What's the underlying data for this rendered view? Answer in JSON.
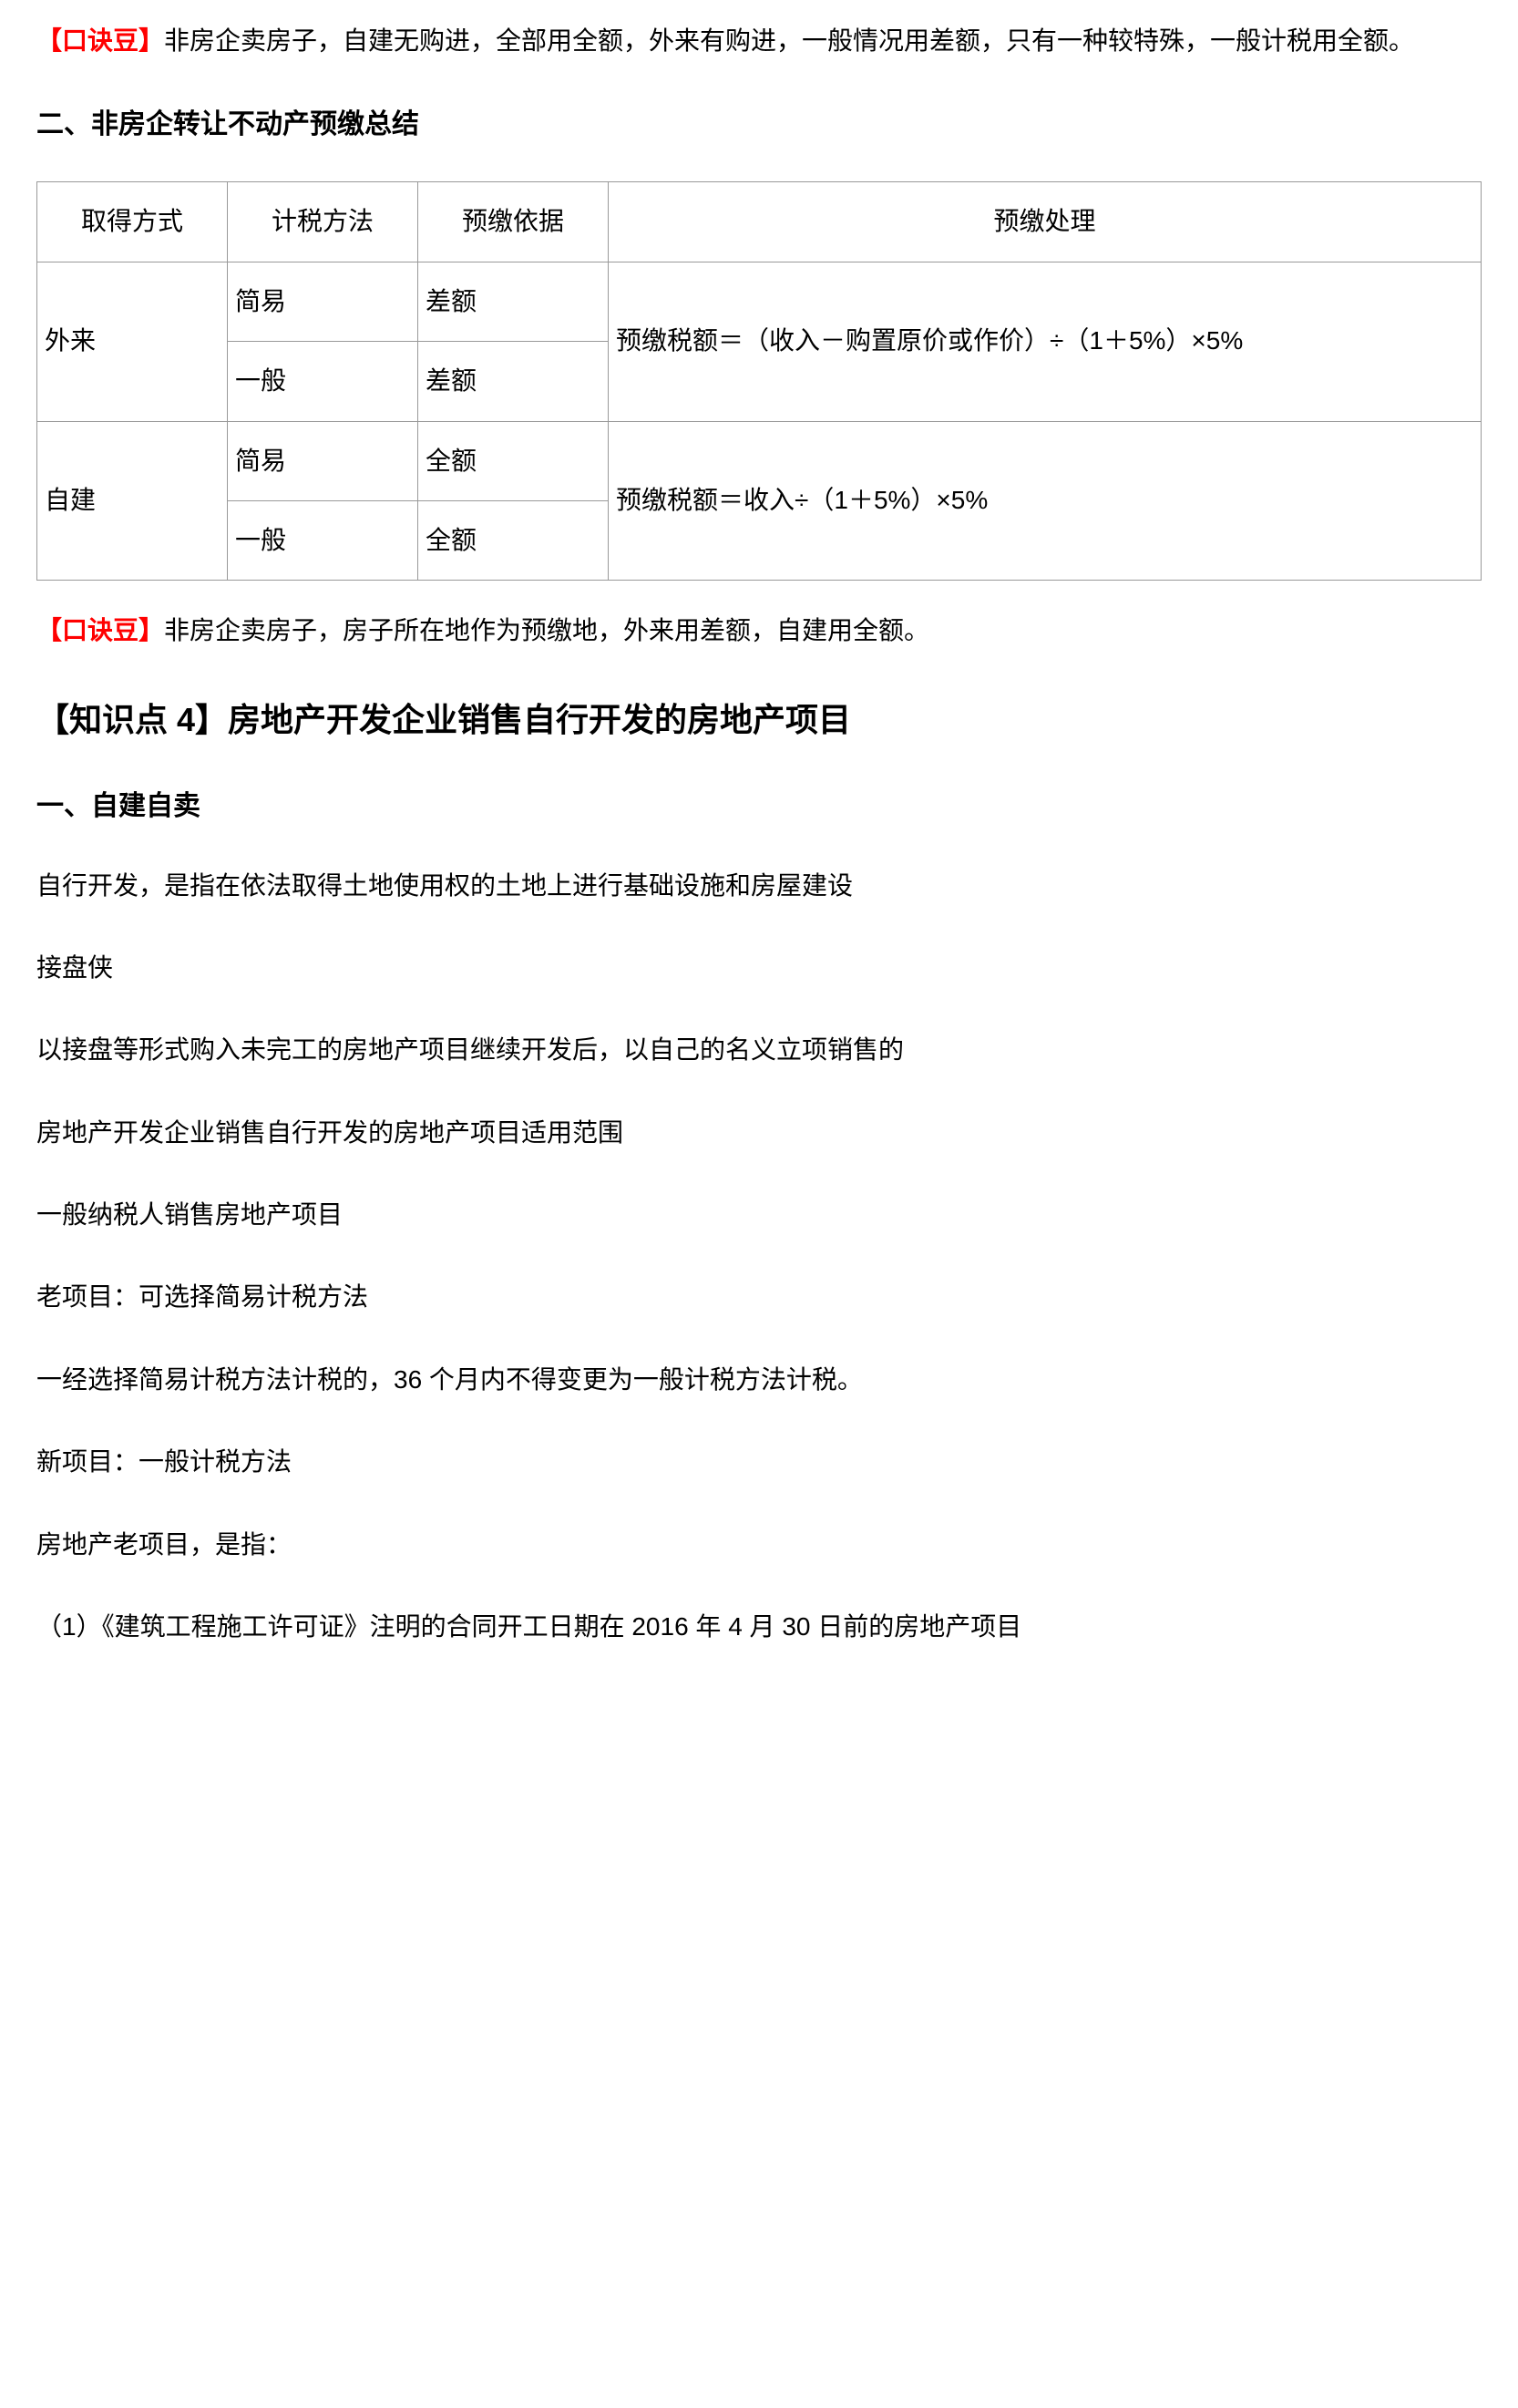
{
  "p1": {
    "tag": "【口诀豆】",
    "text": "非房企卖房子，自建无购进，全部用全额，外来有购进，一般情况用差额，只有一种较特殊，一般计税用全额。"
  },
  "h2_1": "二、非房企转让不动产预缴总结",
  "table1": {
    "headers": {
      "method": "取得方式",
      "tax": "计税方法",
      "basis": "预缴依据",
      "processing": "预缴处理"
    },
    "rows": {
      "r1_method": "外来",
      "r1_tax": "简易",
      "r1_basis": "差额",
      "r1_processing": "预缴税额＝（收入－购置原价或作价）÷（1＋5%）×5%",
      "r2_tax": "一般",
      "r2_basis": "差额",
      "r3_method": "自建",
      "r3_tax": "简易",
      "r3_basis": "全额",
      "r3_processing": "预缴税额＝收入÷（1＋5%）×5%",
      "r4_tax": "一般",
      "r4_basis": "全额"
    }
  },
  "p2": {
    "tag": "【口诀豆】",
    "text": "非房企卖房子，房子所在地作为预缴地，外来用差额，自建用全额。"
  },
  "h1_1": "【知识点 4】房地产开发企业销售自行开发的房地产项目",
  "h2_2": "一、自建自卖",
  "p3": "自行开发，是指在依法取得土地使用权的土地上进行基础设施和房屋建设",
  "p4": "接盘侠",
  "p5": "以接盘等形式购入未完工的房地产项目继续开发后，以自己的名义立项销售的",
  "p6": "房地产开发企业销售自行开发的房地产项目适用范围",
  "p7": "一般纳税人销售房地产项目",
  "p8": "老项目：可选择简易计税方法",
  "p9": "一经选择简易计税方法计税的，36 个月内不得变更为一般计税方法计税。",
  "p10": "新项目：一般计税方法",
  "p11": "房地产老项目，是指：",
  "p12": "（1）《建筑工程施工许可证》注明的合同开工日期在 2016 年 4 月 30 日前的房地产项目"
}
